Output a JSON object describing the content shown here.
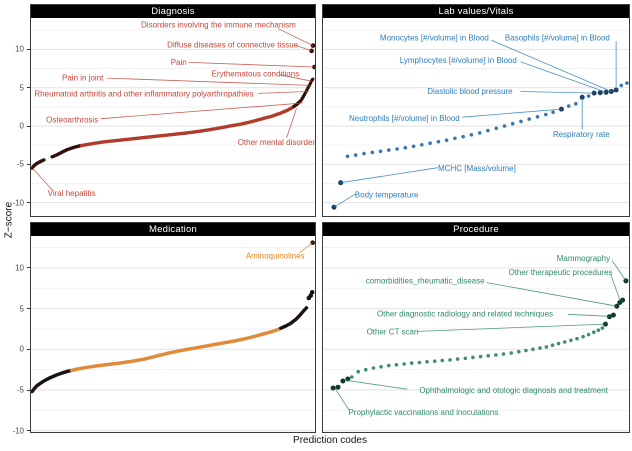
{
  "figure": {
    "y_axis_label": "Z−score",
    "x_axis_label": "Prediction codes",
    "y_ticks": [
      10,
      5,
      0,
      -5,
      -10
    ],
    "colors": {
      "background": "#ffffff",
      "grid_major": "#e2e2e2",
      "grid_minor": "#f2f2f2",
      "panel_border": "#3c3c3c",
      "strip_bg": "#000000",
      "strip_fg": "#ffffff",
      "tick_text": "#4a4a4a"
    }
  },
  "chart_data": [
    {
      "type": "scatter",
      "title": "Diagnosis",
      "position": "top-left",
      "ylabel": "Z−score",
      "ylim": [
        -11.7,
        14.1
      ],
      "approx_n_points": 240,
      "colors": {
        "main": "#b23c2c",
        "dark": "#331009",
        "label": "#c4473a"
      },
      "dark_below": -2.55,
      "dark_above": 2.45,
      "gaps": [
        [
          0.048,
          0.072
        ]
      ],
      "curve": [
        [
          0.004,
          -5.5
        ],
        [
          0.01,
          -5.2
        ],
        [
          0.02,
          -4.9
        ],
        [
          0.035,
          -4.6
        ],
        [
          0.05,
          -4.35
        ],
        [
          0.065,
          -4.15
        ],
        [
          0.08,
          -3.95
        ],
        [
          0.1,
          -3.6
        ],
        [
          0.115,
          -3.3
        ],
        [
          0.13,
          -3.05
        ],
        [
          0.15,
          -2.8
        ],
        [
          0.17,
          -2.6
        ],
        [
          0.2,
          -2.4
        ],
        [
          0.25,
          -2.1
        ],
        [
          0.3,
          -1.9
        ],
        [
          0.35,
          -1.7
        ],
        [
          0.4,
          -1.5
        ],
        [
          0.45,
          -1.3
        ],
        [
          0.5,
          -1.1
        ],
        [
          0.55,
          -0.9
        ],
        [
          0.6,
          -0.65
        ],
        [
          0.65,
          -0.35
        ],
        [
          0.68,
          -0.15
        ],
        [
          0.7,
          0.0
        ],
        [
          0.74,
          0.25
        ],
        [
          0.78,
          0.6
        ],
        [
          0.82,
          1.0
        ],
        [
          0.85,
          1.3
        ],
        [
          0.88,
          1.7
        ],
        [
          0.9,
          2.0
        ],
        [
          0.92,
          2.4
        ],
        [
          0.935,
          2.8
        ],
        [
          0.95,
          3.3
        ],
        [
          0.96,
          3.9
        ],
        [
          0.97,
          4.6
        ],
        [
          0.98,
          5.3
        ],
        [
          0.988,
          5.9
        ],
        [
          0.992,
          6.1
        ]
      ],
      "extra_points": [
        [
          0.993,
          10.5
        ],
        [
          0.988,
          9.8
        ],
        [
          0.998,
          7.7
        ]
      ],
      "annotations": [
        {
          "text": "Disorders involving the immune mechanism",
          "label": [
            0.66,
            13.2
          ],
          "anchor": "middle",
          "seg": [
            0.87,
            12.7
          ],
          "point": [
            0.993,
            10.5
          ]
        },
        {
          "text": "Diffuse diseases of connective tissue",
          "label": [
            0.71,
            10.6
          ],
          "anchor": "middle",
          "seg": [
            0.935,
            10.5
          ],
          "point": [
            0.988,
            9.8
          ]
        },
        {
          "text": "Pain",
          "label": [
            0.52,
            8.35
          ],
          "anchor": "middle",
          "seg": [
            0.555,
            8.3
          ],
          "point": [
            0.998,
            7.7
          ]
        },
        {
          "text": "Erythematous conditions",
          "label": [
            0.79,
            6.85
          ],
          "anchor": "middle",
          "seg": [
            0.875,
            6.7
          ],
          "point": [
            0.988,
            5.85
          ]
        },
        {
          "text": "Pain in joint",
          "label": [
            0.182,
            6.3
          ],
          "anchor": "middle",
          "seg": [
            0.268,
            6.25
          ],
          "point": [
            0.982,
            5.3
          ]
        },
        {
          "text": "Rheumatoid arthritis and other inflammatory polyarthropathies",
          "label": [
            0.012,
            4.2
          ],
          "anchor": "start",
          "seg": [
            0.8,
            4.25
          ],
          "point": [
            0.973,
            4.5
          ]
        },
        {
          "text": "Osteoarthrosis",
          "label": [
            0.145,
            0.85
          ],
          "anchor": "middle",
          "seg": [
            0.245,
            0.95
          ],
          "point": [
            0.957,
            3.0
          ]
        },
        {
          "text": "Other mental disorder",
          "label": [
            0.864,
            -2.1
          ],
          "anchor": "middle",
          "seg": [
            0.9,
            -1.55
          ],
          "point": [
            0.935,
            2.3
          ]
        },
        {
          "text": "Viral hepatitis",
          "label": [
            0.143,
            -8.75
          ],
          "anchor": "middle",
          "seg": [
            0.075,
            -8.35
          ],
          "point": [
            0.006,
            -5.55
          ]
        }
      ]
    },
    {
      "type": "scatter",
      "title": "Lab values/Vitals",
      "position": "top-right",
      "ylim": [
        -11.7,
        14.1
      ],
      "colors": {
        "main": "#3a77ad",
        "dark": "#1c3d5e",
        "label": "#2d7dbb"
      },
      "points": [
        [
          0.036,
          -10.6,
          1
        ],
        [
          0.058,
          -7.4,
          1
        ],
        [
          0.08,
          -3.95,
          0
        ],
        [
          0.107,
          -3.8,
          0
        ],
        [
          0.134,
          -3.6,
          0
        ],
        [
          0.161,
          -3.45,
          0
        ],
        [
          0.188,
          -3.3,
          0
        ],
        [
          0.215,
          -3.15,
          0
        ],
        [
          0.242,
          -3.0,
          0
        ],
        [
          0.269,
          -2.85,
          0
        ],
        [
          0.296,
          -2.65,
          0
        ],
        [
          0.323,
          -2.45,
          0
        ],
        [
          0.35,
          -2.25,
          0
        ],
        [
          0.377,
          -2.05,
          0
        ],
        [
          0.404,
          -1.85,
          0
        ],
        [
          0.431,
          -1.6,
          0
        ],
        [
          0.458,
          -1.4,
          0
        ],
        [
          0.485,
          -1.15,
          0
        ],
        [
          0.512,
          -0.9,
          0
        ],
        [
          0.539,
          -0.6,
          0
        ],
        [
          0.566,
          -0.3,
          0
        ],
        [
          0.593,
          0.0,
          0
        ],
        [
          0.62,
          0.3,
          0
        ],
        [
          0.647,
          0.6,
          0
        ],
        [
          0.674,
          0.9,
          0
        ],
        [
          0.701,
          1.2,
          0
        ],
        [
          0.728,
          1.5,
          0
        ],
        [
          0.752,
          1.8,
          0
        ],
        [
          0.779,
          2.2,
          1
        ],
        [
          0.803,
          2.6,
          0
        ],
        [
          0.826,
          2.9,
          0
        ],
        [
          0.847,
          3.75,
          1
        ],
        [
          0.868,
          3.9,
          0
        ],
        [
          0.886,
          4.3,
          1
        ],
        [
          0.906,
          4.35,
          1
        ],
        [
          0.925,
          4.4,
          1
        ],
        [
          0.942,
          4.5,
          1
        ],
        [
          0.958,
          4.7,
          1
        ],
        [
          0.975,
          5.3,
          0
        ],
        [
          0.993,
          5.6,
          0
        ]
      ],
      "annotations": [
        {
          "text": "Monocytes [#/volume] in Blood",
          "label": [
            0.364,
            11.5
          ],
          "anchor": "middle",
          "seg": [
            0.55,
            11.2
          ],
          "point": [
            0.942,
            4.5
          ]
        },
        {
          "text": "Basophils [#/volume] in Blood",
          "label": [
            0.766,
            11.5
          ],
          "anchor": "middle",
          "seg": [
            0.958,
            11.1
          ],
          "point": [
            0.958,
            4.7
          ]
        },
        {
          "text": "Lymphocytes [#/volume] in Blood",
          "label": [
            0.442,
            8.6
          ],
          "anchor": "middle",
          "seg": [
            0.645,
            8.4
          ],
          "point": [
            0.925,
            4.4
          ]
        },
        {
          "text": "Diastolic blood pressure",
          "label": [
            0.48,
            4.55
          ],
          "anchor": "middle",
          "seg": [
            0.645,
            4.5
          ],
          "point": [
            0.886,
            4.3
          ]
        },
        {
          "text": "Neutrophils [#/volume] in Blood",
          "label": [
            0.266,
            1.05
          ],
          "anchor": "middle",
          "seg": [
            0.455,
            1.15
          ],
          "point": [
            0.779,
            2.2
          ]
        },
        {
          "text": "Respiratory rate",
          "label": [
            0.844,
            -1.05
          ],
          "anchor": "middle",
          "seg": [
            0.847,
            -0.5
          ],
          "point": [
            0.847,
            3.75
          ]
        },
        {
          "text": "MCHC [Mass/volume]",
          "label": [
            0.503,
            -5.5
          ],
          "anchor": "middle",
          "seg": [
            0.375,
            -5.45
          ],
          "point": [
            0.058,
            -7.4
          ]
        },
        {
          "text": "Body temperature",
          "label": [
            0.208,
            -9.0
          ],
          "anchor": "middle",
          "seg": [
            0.107,
            -8.85
          ],
          "point": [
            0.036,
            -10.6
          ]
        }
      ]
    },
    {
      "type": "scatter",
      "title": "Medication",
      "position": "bottom-left",
      "ylim": [
        -10.1,
        13.9
      ],
      "approx_n_points": 300,
      "colors": {
        "main": "#df8b3a",
        "dark": "#1c1411",
        "label": "#e0861f"
      },
      "dark_below": -2.6,
      "dark_above": 2.55,
      "curve": [
        [
          0.004,
          -5.2
        ],
        [
          0.012,
          -4.8
        ],
        [
          0.022,
          -4.45
        ],
        [
          0.034,
          -4.15
        ],
        [
          0.05,
          -3.8
        ],
        [
          0.07,
          -3.45
        ],
        [
          0.09,
          -3.15
        ],
        [
          0.11,
          -2.9
        ],
        [
          0.13,
          -2.7
        ],
        [
          0.16,
          -2.45
        ],
        [
          0.2,
          -2.2
        ],
        [
          0.25,
          -1.95
        ],
        [
          0.3,
          -1.75
        ],
        [
          0.35,
          -1.5
        ],
        [
          0.4,
          -1.2
        ],
        [
          0.44,
          -0.85
        ],
        [
          0.48,
          -0.5
        ],
        [
          0.52,
          -0.2
        ],
        [
          0.56,
          0.05
        ],
        [
          0.6,
          0.3
        ],
        [
          0.64,
          0.55
        ],
        [
          0.68,
          0.8
        ],
        [
          0.72,
          1.05
        ],
        [
          0.76,
          1.35
        ],
        [
          0.8,
          1.7
        ],
        [
          0.83,
          2.0
        ],
        [
          0.86,
          2.3
        ],
        [
          0.88,
          2.6
        ],
        [
          0.9,
          2.9
        ],
        [
          0.915,
          3.2
        ],
        [
          0.93,
          3.6
        ],
        [
          0.942,
          4.0
        ],
        [
          0.952,
          4.4
        ],
        [
          0.962,
          4.8
        ],
        [
          0.97,
          5.1
        ]
      ],
      "extra_points": [
        [
          0.978,
          6.3
        ],
        [
          0.985,
          6.6
        ],
        [
          0.99,
          7.0
        ],
        [
          0.992,
          13.1
        ]
      ],
      "annotations": [
        {
          "text": "Aminoquinolines",
          "label": [
            0.86,
            11.5
          ],
          "anchor": "middle",
          "seg": [
            0.945,
            11.85
          ],
          "point": [
            0.992,
            13.1
          ]
        }
      ]
    },
    {
      "type": "scatter",
      "title": "Procedure",
      "position": "bottom-right",
      "ylim": [
        -10.1,
        13.9
      ],
      "colors": {
        "main": "#3d8f6d",
        "dark": "#143829",
        "label": "#2f8c62"
      },
      "points": [
        [
          0.033,
          -4.75,
          1
        ],
        [
          0.049,
          -4.65,
          1
        ],
        [
          0.065,
          -3.9,
          1
        ],
        [
          0.081,
          -3.65,
          1
        ],
        [
          0.094,
          -3.4,
          0
        ],
        [
          0.115,
          -2.75,
          0
        ],
        [
          0.14,
          -2.5,
          0
        ],
        [
          0.165,
          -2.3,
          0
        ],
        [
          0.19,
          -2.15,
          0
        ],
        [
          0.215,
          -2.0,
          0
        ],
        [
          0.24,
          -1.9,
          0
        ],
        [
          0.265,
          -1.8,
          0
        ],
        [
          0.29,
          -1.7,
          0
        ],
        [
          0.315,
          -1.62,
          0
        ],
        [
          0.34,
          -1.54,
          0
        ],
        [
          0.365,
          -1.46,
          0
        ],
        [
          0.39,
          -1.38,
          0
        ],
        [
          0.415,
          -1.3,
          0
        ],
        [
          0.44,
          -1.2,
          0
        ],
        [
          0.465,
          -1.1,
          0
        ],
        [
          0.49,
          -1.0,
          0
        ],
        [
          0.515,
          -0.9,
          0
        ],
        [
          0.54,
          -0.8,
          0
        ],
        [
          0.565,
          -0.7,
          0
        ],
        [
          0.59,
          -0.58,
          0
        ],
        [
          0.615,
          -0.45,
          0
        ],
        [
          0.64,
          -0.3,
          0
        ],
        [
          0.663,
          -0.15,
          0
        ],
        [
          0.686,
          0.0,
          0
        ],
        [
          0.709,
          0.15,
          0
        ],
        [
          0.73,
          0.3,
          0
        ],
        [
          0.75,
          0.5,
          0
        ],
        [
          0.77,
          0.7,
          0
        ],
        [
          0.79,
          0.9,
          0
        ],
        [
          0.81,
          1.1,
          0
        ],
        [
          0.83,
          1.3,
          0
        ],
        [
          0.85,
          1.55,
          0
        ],
        [
          0.868,
          1.8,
          0
        ],
        [
          0.885,
          2.1,
          0
        ],
        [
          0.9,
          2.35,
          0
        ],
        [
          0.913,
          2.6,
          0
        ],
        [
          0.923,
          3.1,
          1
        ],
        [
          0.936,
          4.0,
          1
        ],
        [
          0.949,
          4.2,
          1
        ],
        [
          0.96,
          5.3,
          1
        ],
        [
          0.97,
          5.75,
          1
        ],
        [
          0.979,
          6.05,
          1
        ],
        [
          0.99,
          8.4,
          1
        ]
      ],
      "annotations": [
        {
          "text": "Mammography",
          "label": [
            0.851,
            11.2
          ],
          "anchor": "middle",
          "seg": [
            0.945,
            10.9
          ],
          "point": [
            0.99,
            8.4
          ]
        },
        {
          "text": "Other therapeutic procedures",
          "label": [
            0.776,
            9.5
          ],
          "anchor": "middle",
          "seg": [
            0.94,
            9.2
          ],
          "point": [
            0.972,
            5.9
          ]
        },
        {
          "text": "comorbidities_rheumatic_disease",
          "label": [
            0.334,
            8.4
          ],
          "anchor": "middle",
          "seg": [
            0.535,
            8.2
          ],
          "point": [
            0.96,
            5.3
          ]
        },
        {
          "text": "Other diagnostic radiology and related techniques",
          "label": [
            0.464,
            4.35
          ],
          "anchor": "middle",
          "seg": [
            0.8,
            4.3
          ],
          "point": [
            0.936,
            4.05
          ]
        },
        {
          "text": "Other CT scan",
          "label": [
            0.227,
            2.15
          ],
          "anchor": "middle",
          "seg": [
            0.31,
            2.2
          ],
          "point": [
            0.923,
            3.1
          ]
        },
        {
          "text": "Ophthalmologic and otologic diagnosis and treatment",
          "label": [
            0.623,
            -5.0
          ],
          "anchor": "middle",
          "seg": [
            0.275,
            -4.9
          ],
          "point": [
            0.073,
            -3.8
          ]
        },
        {
          "text": "Prophylactic vaccinations and inoculations",
          "label": [
            0.328,
            -7.7
          ],
          "anchor": "middle",
          "seg": [
            0.085,
            -7.45
          ],
          "point": [
            0.04,
            -4.85
          ]
        }
      ]
    }
  ]
}
